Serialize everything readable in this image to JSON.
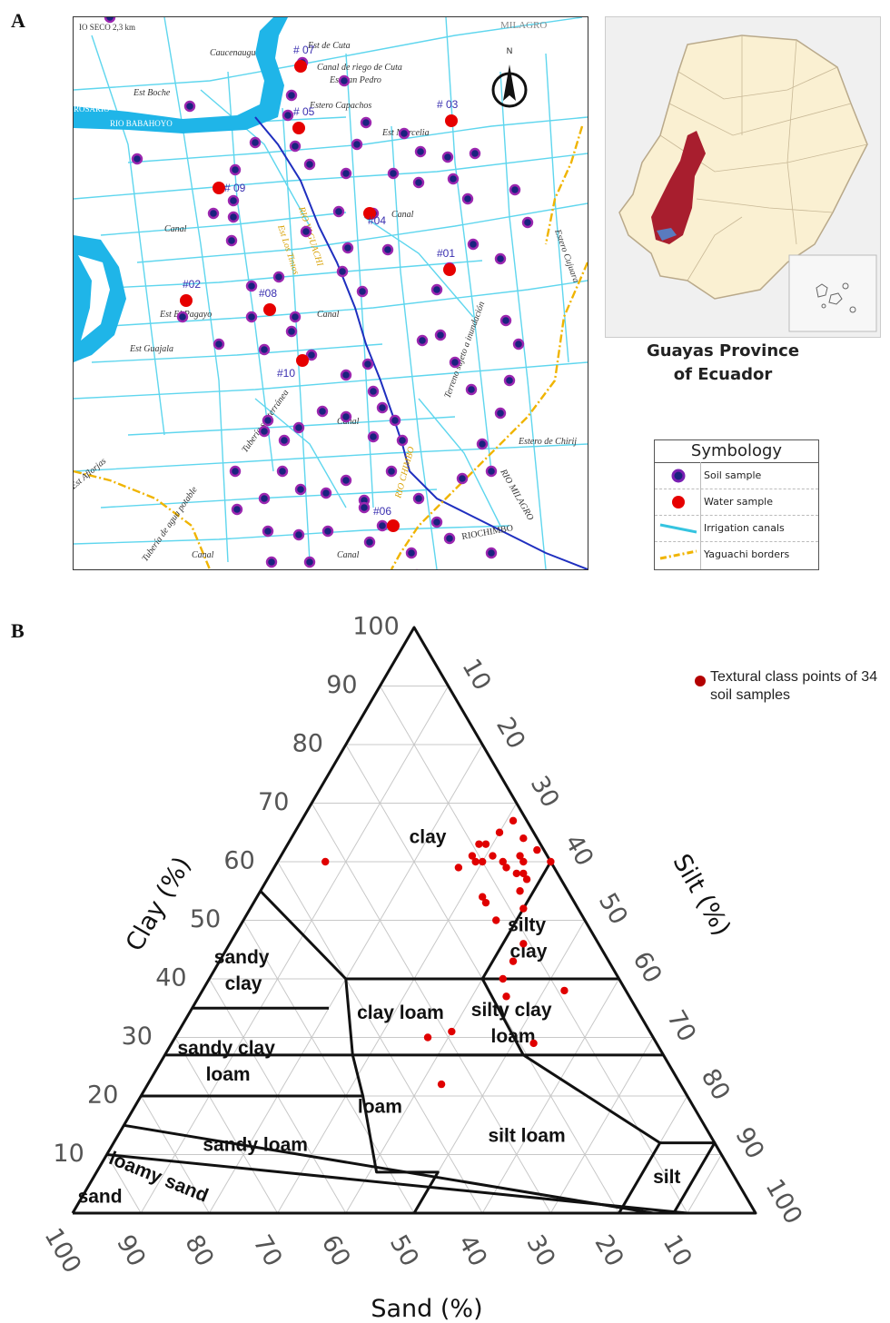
{
  "panel_a": {
    "letter": "A",
    "map_labels": {
      "scale": "IO SECO 2,3 km",
      "milagro": "MILAGRO",
      "north": "N",
      "est_de_cuta": "Est de Cuta",
      "caucenaugu": "Caucenaugu",
      "canal_riego_cuta": "Canal de riego de Cuta",
      "est_san_pedro": "Est San Pedro",
      "est_boch": "Est Boche",
      "rosario": "ROSARIO",
      "rio_babahoyo": "RIO BABAHOYO",
      "estero_capachos": "Estero Capachos",
      "est_marcelia": "Est Marcelia",
      "est_los_tintos": "Est Los Tintos",
      "rio_yaguachi": "RIO YAGUACHI",
      "est_el_pagayo": "Est El Pagayo",
      "est_guajala": "Est Guajala",
      "terreno": "Terreno sujeto a inundación",
      "tuberia_sub": "Tubería subterránea",
      "tuberia_agua": "Tubería de agua potable",
      "rio_chimbo": "RIO CHIMBO",
      "rio_milagro": "RIO MILAGRO",
      "riochimbo": "RIOCHIMBO",
      "estero_de_chirij": "Estero de Chirij",
      "canal": "Canal",
      "est_aflorjas": "Est Aflorjas",
      "est_de_cuta_2": "Estero Cujuara"
    },
    "water_samples": [
      {
        "id": "# 07",
        "label": "# 07"
      },
      {
        "id": "# 05",
        "label": "# 05"
      },
      {
        "id": "# 03",
        "label": "# 03"
      },
      {
        "id": "# 09",
        "label": "# 09"
      },
      {
        "id": "#04",
        "label": "#04"
      },
      {
        "id": "#01",
        "label": "#01"
      },
      {
        "id": "#02",
        "label": "#02"
      },
      {
        "id": "#08",
        "label": "#08"
      },
      {
        "id": "#10",
        "label": "#10"
      },
      {
        "id": "#06",
        "label": "#06"
      }
    ],
    "province_caption_line1": "Guayas Province",
    "province_caption_line2": "of Ecuador",
    "legend": {
      "title": "Symbology",
      "items": [
        {
          "label": "Soil sample",
          "color": "#7a1fb3"
        },
        {
          "label": "Water sample",
          "color": "#e60000"
        },
        {
          "label": "Irrigation canals",
          "color": "#35c4e0"
        },
        {
          "label": "Yaguachi borders",
          "color": "#f0b400"
        }
      ]
    },
    "colors": {
      "canal": "#5fd6ee",
      "river_fill": "#1fb5e8",
      "border": "#f0b400",
      "main_river": "#1f2fbf",
      "soil": "#7a1fb3",
      "water": "#e60000",
      "province": "#a81e2e",
      "ecuador": "#faf0d2"
    }
  },
  "panel_b": {
    "letter": "B",
    "chart_data": {
      "type": "scatter",
      "subtype": "ternary-soil-texture",
      "axes": {
        "clay": {
          "label": "Clay (%)",
          "ticks": [
            "10",
            "20",
            "30",
            "40",
            "50",
            "60",
            "70",
            "80",
            "90",
            "100"
          ]
        },
        "silt": {
          "label": "Silt (%)",
          "ticks": [
            "10",
            "20",
            "30",
            "40",
            "50",
            "60",
            "70",
            "80",
            "90",
            "100"
          ]
        },
        "sand": {
          "label": "Sand (%)",
          "ticks": [
            "100",
            "90",
            "80",
            "70",
            "60",
            "50",
            "40",
            "30",
            "20",
            "10"
          ]
        }
      },
      "classes": [
        "clay",
        "silty clay",
        "sandy clay",
        "clay loam",
        "silty clay loam",
        "sandy clay loam",
        "loam",
        "silt loam",
        "sandy loam",
        "loamy sand",
        "sand",
        "silt"
      ],
      "class_labels": {
        "clay": "clay",
        "silty_clay_1": "silty",
        "silty_clay_2": "clay",
        "sandy_clay_1": "sandy",
        "sandy_clay_2": "clay",
        "clay_loam": "clay loam",
        "silty_clay_loam_1": "silty clay",
        "silty_clay_loam_2": "loam",
        "sandy_clay_loam_1": "sandy clay",
        "sandy_clay_loam_2": "loam",
        "loam": "loam",
        "silt_loam": "silt loam",
        "sandy_loam": "sandy loam",
        "loamy_sand": "loamy sand",
        "sand": "sand",
        "silt": "silt"
      },
      "legend": "Textural class points of 34 soil samples",
      "point_color": "#e00000",
      "grid": true,
      "points": [
        {
          "clay": 67,
          "silt": 31,
          "sand": 2
        },
        {
          "clay": 65,
          "silt": 30,
          "sand": 5
        },
        {
          "clay": 64,
          "silt": 34,
          "sand": 2
        },
        {
          "clay": 63,
          "silt": 29,
          "sand": 8
        },
        {
          "clay": 63,
          "silt": 28,
          "sand": 9
        },
        {
          "clay": 62,
          "silt": 37,
          "sand": 1
        },
        {
          "clay": 61,
          "silt": 28,
          "sand": 11
        },
        {
          "clay": 61,
          "silt": 31,
          "sand": 8
        },
        {
          "clay": 61,
          "silt": 35,
          "sand": 4
        },
        {
          "clay": 60,
          "silt": 29,
          "sand": 11
        },
        {
          "clay": 60,
          "silt": 30,
          "sand": 10
        },
        {
          "clay": 60,
          "silt": 33,
          "sand": 7
        },
        {
          "clay": 60,
          "silt": 36,
          "sand": 4
        },
        {
          "clay": 60,
          "silt": 40,
          "sand": 0
        },
        {
          "clay": 60,
          "silt": 7,
          "sand": 33
        },
        {
          "clay": 59,
          "silt": 27,
          "sand": 14
        },
        {
          "clay": 59,
          "silt": 34,
          "sand": 7
        },
        {
          "clay": 58,
          "silt": 36,
          "sand": 6
        },
        {
          "clay": 58,
          "silt": 37,
          "sand": 5
        },
        {
          "clay": 57,
          "silt": 38,
          "sand": 5
        },
        {
          "clay": 55,
          "silt": 38,
          "sand": 7
        },
        {
          "clay": 54,
          "silt": 33,
          "sand": 13
        },
        {
          "clay": 53,
          "silt": 34,
          "sand": 13
        },
        {
          "clay": 52,
          "silt": 40,
          "sand": 8
        },
        {
          "clay": 50,
          "silt": 37,
          "sand": 13
        },
        {
          "clay": 46,
          "silt": 43,
          "sand": 11
        },
        {
          "clay": 43,
          "silt": 43,
          "sand": 14
        },
        {
          "clay": 40,
          "silt": 43,
          "sand": 17
        },
        {
          "clay": 38,
          "silt": 53,
          "sand": 9
        },
        {
          "clay": 37,
          "silt": 45,
          "sand": 18
        },
        {
          "clay": 31,
          "silt": 40,
          "sand": 29
        },
        {
          "clay": 30,
          "silt": 37,
          "sand": 33
        },
        {
          "clay": 29,
          "silt": 53,
          "sand": 18
        },
        {
          "clay": 22,
          "silt": 43,
          "sand": 35
        }
      ]
    }
  }
}
